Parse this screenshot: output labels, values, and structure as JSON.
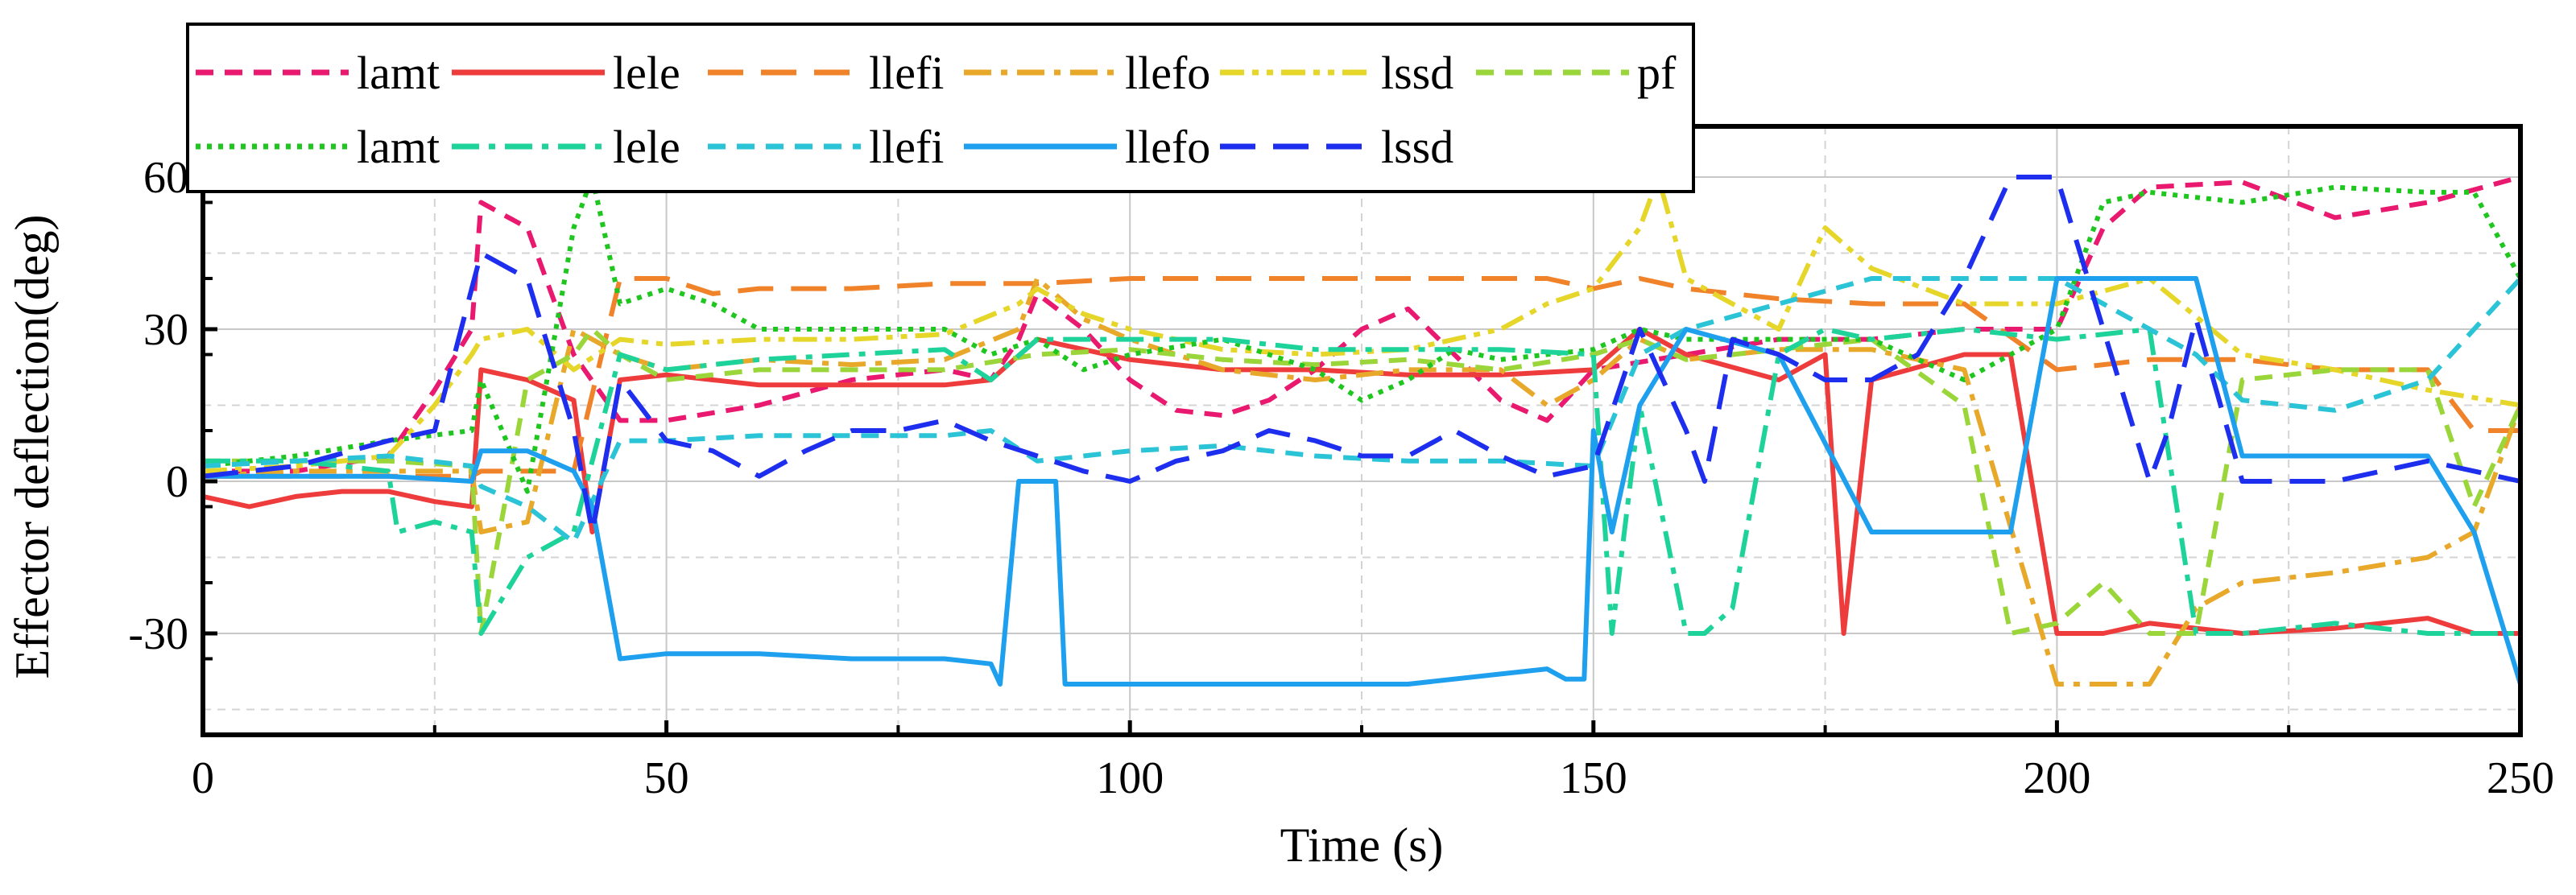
{
  "chart_data": {
    "type": "line",
    "title": "",
    "xlabel": "Time (s)",
    "ylabel": "Effector deflection(deg)",
    "xlim": [
      0,
      250
    ],
    "ylim": [
      -50,
      70
    ],
    "xticks": [
      0,
      50,
      100,
      150,
      200,
      250
    ],
    "yticks": [
      -30,
      0,
      30,
      60
    ],
    "xtick_labels": [
      "0",
      "50",
      "100",
      "150",
      "200",
      "250"
    ],
    "ytick_labels": [
      "-30",
      "0",
      "30",
      "60"
    ],
    "grid": true,
    "legend_position": "top-left",
    "series": [
      {
        "name": "lamt",
        "color": "#e8196e",
        "dash": "short-dash",
        "x": [
          0,
          10,
          20,
          25,
          29,
          30,
          35,
          40,
          45,
          50,
          60,
          70,
          80,
          85,
          88,
          90,
          95,
          100,
          105,
          110,
          115,
          120,
          125,
          130,
          135,
          140,
          145,
          150,
          160,
          170,
          180,
          190,
          200,
          205,
          210,
          220,
          230,
          240,
          250
        ],
        "y": [
          2,
          2,
          5,
          18,
          30,
          55,
          50,
          25,
          12,
          12,
          15,
          20,
          22,
          20,
          28,
          37,
          30,
          20,
          14,
          13,
          16,
          22,
          30,
          34,
          25,
          16,
          12,
          22,
          25,
          28,
          28,
          30,
          30,
          50,
          58,
          59,
          52,
          55,
          60
        ]
      },
      {
        "name": "lele",
        "color": "#ee3b3b",
        "dash": "solid",
        "x": [
          0,
          5,
          10,
          15,
          20,
          25,
          29,
          30,
          35,
          40,
          42,
          45,
          50,
          55,
          60,
          70,
          80,
          85,
          90,
          100,
          110,
          120,
          130,
          140,
          150,
          155,
          160,
          170,
          175,
          177,
          180,
          190,
          195,
          200,
          205,
          210,
          220,
          230,
          240,
          245,
          250
        ],
        "y": [
          -3,
          -5,
          -3,
          -2,
          -2,
          -4,
          -5,
          22,
          20,
          16,
          -10,
          20,
          21,
          20,
          19,
          19,
          19,
          20,
          28,
          24,
          22,
          22,
          21,
          21,
          22,
          30,
          25,
          20,
          25,
          -30,
          20,
          25,
          25,
          -30,
          -30,
          -28,
          -30,
          -29,
          -27,
          -30,
          -30
        ]
      },
      {
        "name": "llefi",
        "color": "#f0832a",
        "dash": "long-dash",
        "x": [
          0,
          10,
          20,
          29,
          30,
          35,
          40,
          45,
          50,
          55,
          60,
          70,
          80,
          90,
          100,
          110,
          120,
          130,
          140,
          145,
          150,
          155,
          160,
          170,
          180,
          190,
          200,
          210,
          220,
          230,
          240,
          245,
          250
        ],
        "y": [
          1,
          1,
          1,
          1,
          2,
          2,
          2,
          40,
          40,
          37,
          38,
          38,
          39,
          39,
          40,
          40,
          40,
          40,
          40,
          40,
          38,
          40,
          38,
          36,
          35,
          35,
          22,
          24,
          24,
          22,
          22,
          10,
          10
        ]
      },
      {
        "name": "llefo",
        "color": "#e8a82a",
        "dash": "dash-dot",
        "x": [
          0,
          10,
          20,
          29,
          30,
          35,
          40,
          45,
          50,
          60,
          70,
          80,
          88,
          90,
          95,
          100,
          110,
          120,
          130,
          140,
          145,
          150,
          155,
          160,
          170,
          180,
          190,
          200,
          205,
          210,
          215,
          220,
          230,
          240,
          245,
          250
        ],
        "y": [
          1,
          2,
          2,
          2,
          -10,
          -8,
          30,
          25,
          22,
          24,
          23,
          24,
          30,
          40,
          32,
          28,
          22,
          20,
          22,
          22,
          15,
          20,
          28,
          24,
          26,
          26,
          22,
          -40,
          -40,
          -40,
          -25,
          -20,
          -18,
          -15,
          -10,
          15
        ]
      },
      {
        "name": "lssd",
        "color": "#e6d62a",
        "dash": "dash-dot-dot",
        "x": [
          0,
          10,
          20,
          25,
          29,
          30,
          35,
          40,
          45,
          50,
          60,
          70,
          80,
          88,
          90,
          95,
          100,
          110,
          120,
          130,
          140,
          145,
          150,
          155,
          157,
          160,
          165,
          170,
          175,
          180,
          190,
          200,
          210,
          220,
          230,
          240,
          250
        ],
        "y": [
          2,
          3,
          5,
          15,
          25,
          28,
          30,
          22,
          28,
          27,
          28,
          28,
          29,
          35,
          38,
          33,
          30,
          26,
          25,
          26,
          30,
          35,
          38,
          50,
          60,
          40,
          35,
          30,
          50,
          42,
          35,
          35,
          40,
          25,
          22,
          18,
          15
        ]
      },
      {
        "name": "pf",
        "color": "#9ad63a",
        "dash": "short-dash",
        "x": [
          0,
          10,
          20,
          29,
          30,
          35,
          40,
          42,
          45,
          50,
          60,
          70,
          80,
          90,
          100,
          110,
          120,
          130,
          140,
          150,
          155,
          160,
          170,
          180,
          190,
          195,
          200,
          205,
          210,
          215,
          220,
          230,
          240,
          245,
          250
        ],
        "y": [
          4,
          4,
          4,
          3,
          -30,
          20,
          25,
          30,
          25,
          20,
          22,
          22,
          22,
          25,
          26,
          24,
          23,
          24,
          22,
          25,
          28,
          24,
          26,
          28,
          15,
          -30,
          -28,
          -20,
          -30,
          -30,
          20,
          22,
          22,
          -5,
          15
        ]
      },
      {
        "name": "lamt",
        "color": "#1fc61f",
        "dash": "dotted",
        "x": [
          0,
          10,
          20,
          29,
          30,
          35,
          40,
          42,
          45,
          50,
          55,
          60,
          70,
          80,
          85,
          90,
          95,
          100,
          110,
          120,
          125,
          130,
          135,
          140,
          150,
          155,
          160,
          170,
          180,
          190,
          200,
          205,
          210,
          220,
          230,
          240,
          245,
          250
        ],
        "y": [
          3,
          5,
          8,
          10,
          20,
          -2,
          50,
          60,
          35,
          38,
          35,
          30,
          30,
          30,
          25,
          28,
          22,
          25,
          28,
          22,
          16,
          20,
          26,
          24,
          26,
          30,
          28,
          28,
          28,
          20,
          30,
          55,
          57,
          55,
          58,
          57,
          57,
          40
        ]
      },
      {
        "name": "lele",
        "color": "#1ed39a",
        "dash": "dash-dot",
        "x": [
          0,
          10,
          20,
          21,
          25,
          29,
          30,
          35,
          40,
          45,
          50,
          60,
          70,
          80,
          85,
          90,
          100,
          110,
          120,
          130,
          140,
          150,
          152,
          155,
          160,
          162,
          165,
          170,
          175,
          180,
          190,
          200,
          210,
          215,
          220,
          230,
          240,
          250
        ],
        "y": [
          4,
          4,
          2,
          -10,
          -8,
          -10,
          -30,
          -15,
          -10,
          25,
          22,
          24,
          25,
          26,
          20,
          28,
          28,
          28,
          26,
          26,
          26,
          25,
          -30,
          15,
          -30,
          -30,
          -25,
          25,
          30,
          28,
          30,
          28,
          30,
          -30,
          -30,
          -28,
          -30,
          -30
        ]
      },
      {
        "name": "llefi",
        "color": "#2ac4d6",
        "dash": "short-dash",
        "x": [
          0,
          10,
          20,
          29,
          30,
          35,
          40,
          45,
          50,
          60,
          70,
          80,
          85,
          90,
          95,
          100,
          110,
          120,
          130,
          140,
          150,
          155,
          160,
          170,
          180,
          190,
          200,
          210,
          215,
          220,
          230,
          240,
          250
        ],
        "y": [
          3,
          4,
          5,
          3,
          -1,
          -5,
          -12,
          8,
          8,
          9,
          9,
          9,
          10,
          4,
          5,
          6,
          7,
          5,
          4,
          4,
          3,
          25,
          30,
          35,
          40,
          40,
          40,
          30,
          25,
          16,
          14,
          20,
          40
        ]
      },
      {
        "name": "llefo",
        "color": "#1ea0ee",
        "dash": "solid",
        "x": [
          0,
          10,
          20,
          29,
          30,
          35,
          40,
          42,
          45,
          50,
          60,
          70,
          80,
          85,
          86,
          88,
          90,
          92,
          93,
          95,
          100,
          110,
          120,
          130,
          140,
          145,
          147,
          149,
          150,
          152,
          155,
          160,
          170,
          180,
          185,
          190,
          195,
          200,
          205,
          210,
          215,
          220,
          230,
          240,
          245,
          250
        ],
        "y": [
          1,
          1,
          1,
          0,
          6,
          6,
          2,
          -5,
          -35,
          -34,
          -34,
          -35,
          -35,
          -36,
          -40,
          0,
          0,
          0,
          -40,
          -40,
          -40,
          -40,
          -40,
          -40,
          -38,
          -37,
          -39,
          -39,
          10,
          -10,
          15,
          30,
          25,
          -10,
          -10,
          -10,
          -10,
          40,
          40,
          40,
          40,
          5,
          5,
          5,
          -10,
          -40
        ]
      },
      {
        "name": "lssd",
        "color": "#1e2eee",
        "dash": "long-dash",
        "x": [
          0,
          10,
          20,
          25,
          29,
          30,
          35,
          40,
          42,
          45,
          50,
          55,
          60,
          65,
          70,
          75,
          80,
          85,
          90,
          95,
          100,
          105,
          110,
          115,
          120,
          125,
          130,
          135,
          140,
          145,
          150,
          155,
          160,
          162,
          165,
          170,
          175,
          180,
          185,
          190,
          195,
          197,
          200,
          205,
          210,
          212,
          215,
          220,
          230,
          240,
          250
        ],
        "y": [
          1,
          3,
          8,
          10,
          38,
          45,
          40,
          10,
          -10,
          20,
          8,
          6,
          1,
          6,
          10,
          10,
          12,
          8,
          5,
          2,
          0,
          4,
          6,
          10,
          8,
          5,
          5,
          10,
          5,
          1,
          3,
          30,
          10,
          0,
          28,
          25,
          20,
          20,
          25,
          40,
          60,
          60,
          60,
          30,
          0,
          10,
          32,
          0,
          0,
          4,
          0
        ]
      }
    ]
  }
}
